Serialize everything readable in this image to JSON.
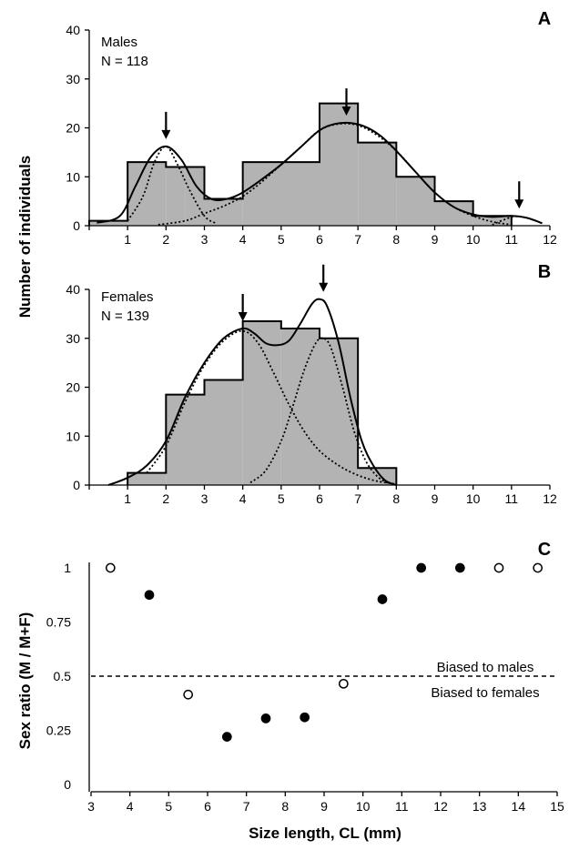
{
  "colors": {
    "bar_fill": "#b3b3b3",
    "stroke": "#000000",
    "background": "#ffffff"
  },
  "shared_labels": {
    "ylabel_ab": "Number of individuals",
    "xlabel_c": "Size length, CL (mm)"
  },
  "chart_data": [
    {
      "type": "bar",
      "panel_letter": "A",
      "group_label": "Males",
      "n_label": "N = 118",
      "bin_edges": [
        0,
        1,
        2,
        2.5,
        3,
        4,
        6,
        7,
        8,
        9,
        10,
        11
      ],
      "values": [
        1,
        13,
        12,
        12,
        5.5,
        13,
        25,
        17,
        10,
        5,
        2
      ],
      "xlim": [
        0,
        12
      ],
      "ylim": [
        0,
        40
      ],
      "xticks": [
        1,
        2,
        3,
        4,
        5,
        6,
        7,
        8,
        9,
        10,
        11,
        12
      ],
      "yticks": [
        0,
        10,
        20,
        30,
        40
      ],
      "total_curve": {
        "x": [
          0.2,
          0.8,
          1.2,
          1.6,
          2.0,
          2.4,
          2.8,
          3.2,
          3.6,
          4.0,
          4.5,
          5.0,
          5.5,
          6.0,
          6.4,
          6.8,
          7.2,
          7.6,
          8.0,
          8.5,
          9.0,
          9.5,
          10.0,
          10.5,
          11.0,
          11.4,
          11.8
        ],
        "y": [
          0.6,
          2.0,
          8.0,
          14.0,
          16.2,
          13.5,
          8.0,
          5.4,
          5.5,
          6.8,
          9.5,
          12.5,
          16.0,
          19.5,
          20.8,
          21.0,
          20.2,
          18.3,
          15.3,
          11.0,
          6.8,
          3.8,
          2.3,
          1.8,
          2.0,
          1.6,
          0.5
        ]
      },
      "component_curves": [
        {
          "x": [
            1.0,
            1.4,
            1.7,
            2.0,
            2.3,
            2.6,
            3.0,
            3.3
          ],
          "y": [
            1.0,
            6.0,
            13.0,
            16.2,
            12.5,
            7.5,
            2.0,
            0.5
          ]
        },
        {
          "x": [
            1.8,
            2.5,
            3.0,
            3.5,
            4.0,
            4.5,
            5.0,
            5.5,
            6.0,
            6.5,
            7.0,
            7.5,
            8.0,
            8.5,
            9.0,
            9.5,
            10.0,
            10.5,
            11.0
          ],
          "y": [
            0.2,
            1.0,
            2.5,
            4.0,
            6.0,
            9.0,
            12.5,
            16.0,
            19.5,
            20.8,
            20.5,
            18.5,
            15.3,
            11.0,
            6.8,
            3.8,
            2.0,
            0.8,
            0.2
          ]
        },
        {
          "x": [
            10.5,
            10.8,
            11.1,
            11.4,
            11.8
          ],
          "y": [
            0.2,
            1.2,
            1.9,
            1.6,
            0.5
          ]
        }
      ],
      "arrows_x": [
        2.0,
        6.7,
        11.2
      ],
      "arrows_y": [
        16.2,
        21.0,
        2.0
      ]
    },
    {
      "type": "bar",
      "panel_letter": "B",
      "group_label": "Females",
      "n_label": "N = 139",
      "bin_edges": [
        1,
        2,
        3,
        4,
        5,
        6,
        7,
        8
      ],
      "values": [
        2.5,
        18.5,
        21.5,
        33.5,
        32,
        30,
        3.5
      ],
      "xlim": [
        0,
        12
      ],
      "ylim": [
        0,
        40
      ],
      "xticks": [
        1,
        2,
        3,
        4,
        5,
        6,
        7,
        8,
        9,
        10,
        11,
        12
      ],
      "yticks": [
        0,
        10,
        20,
        30,
        40
      ],
      "total_curve": {
        "x": [
          0.5,
          1.0,
          1.5,
          2.0,
          2.5,
          3.0,
          3.5,
          4.0,
          4.3,
          4.6,
          4.9,
          5.2,
          5.5,
          5.8,
          6.0,
          6.2,
          6.5,
          6.8,
          7.1,
          7.4,
          7.7,
          8.0
        ],
        "y": [
          0.0,
          1.5,
          4.0,
          9.0,
          18.0,
          25.0,
          30.0,
          32.0,
          31.0,
          29.0,
          28.6,
          29.5,
          33.0,
          37.0,
          38.0,
          36.5,
          29.0,
          18.0,
          9.0,
          4.0,
          1.0,
          0.0
        ]
      },
      "component_curves": [
        {
          "x": [
            1.5,
            2.0,
            2.5,
            3.0,
            3.5,
            4.0,
            4.4,
            4.8,
            5.2,
            5.6,
            6.0,
            6.5,
            7.0,
            7.5,
            8.0
          ],
          "y": [
            2.5,
            8.0,
            17.0,
            24.5,
            29.5,
            31.5,
            29.0,
            23.0,
            16.5,
            11.0,
            7.0,
            4.0,
            2.0,
            0.8,
            0.2
          ]
        },
        {
          "x": [
            4.2,
            4.6,
            5.0,
            5.3,
            5.6,
            5.9,
            6.1,
            6.3,
            6.6,
            6.9,
            7.2,
            7.5,
            7.8
          ],
          "y": [
            0.5,
            3.0,
            9.0,
            16.0,
            23.5,
            29.0,
            30.0,
            28.0,
            20.0,
            11.0,
            5.0,
            1.8,
            0.3
          ]
        }
      ],
      "arrows_x": [
        4.0,
        6.1
      ],
      "arrows_y": [
        32.0,
        38.0
      ]
    },
    {
      "type": "scatter",
      "panel_letter": "C",
      "xlabel": "Size length, CL (mm)",
      "ylabel": "Sex ratio (M / M+F)",
      "xlim": [
        3,
        15
      ],
      "ylim": [
        0,
        1
      ],
      "xticks": [
        3,
        4,
        5,
        6,
        7,
        8,
        9,
        10,
        11,
        12,
        13,
        14,
        15
      ],
      "yticks": [
        0,
        0.25,
        0.5,
        0.75,
        1
      ],
      "ytick_labels": [
        "0",
        "0.25",
        "0.5",
        "0.75",
        "1"
      ],
      "reference_line_y": 0.5,
      "annotation_above": "Biased to males",
      "annotation_below": "Biased to females",
      "points": [
        {
          "x": 3.5,
          "y": 1.0,
          "filled": false
        },
        {
          "x": 4.5,
          "y": 0.875,
          "filled": true
        },
        {
          "x": 5.5,
          "y": 0.415,
          "filled": false
        },
        {
          "x": 6.5,
          "y": 0.22,
          "filled": true
        },
        {
          "x": 7.5,
          "y": 0.305,
          "filled": true
        },
        {
          "x": 8.5,
          "y": 0.31,
          "filled": true
        },
        {
          "x": 9.5,
          "y": 0.465,
          "filled": false
        },
        {
          "x": 10.5,
          "y": 0.855,
          "filled": true
        },
        {
          "x": 11.5,
          "y": 1.0,
          "filled": true
        },
        {
          "x": 12.5,
          "y": 1.0,
          "filled": true
        },
        {
          "x": 13.5,
          "y": 1.0,
          "filled": false
        },
        {
          "x": 14.5,
          "y": 1.0,
          "filled": false
        }
      ]
    }
  ]
}
